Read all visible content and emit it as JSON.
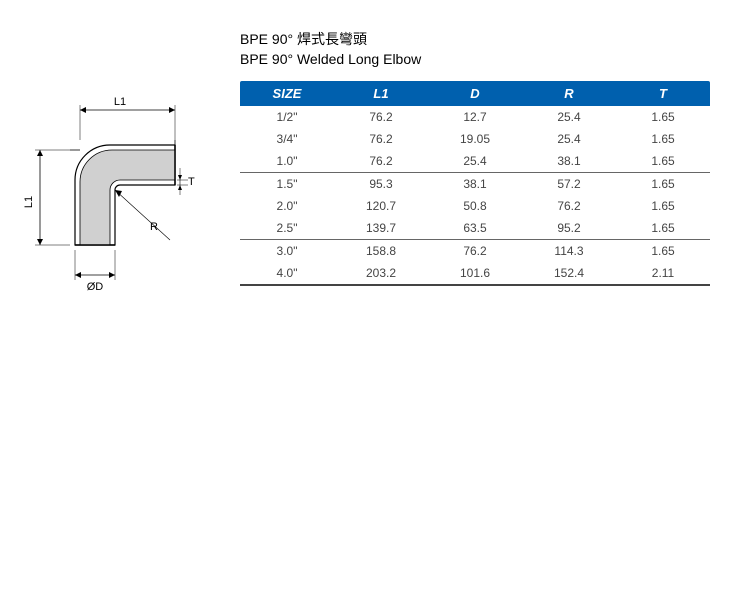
{
  "title": {
    "line1": "BPE 90° 焊式長彎頭",
    "line2": "BPE 90° Welded Long Elbow"
  },
  "diagram": {
    "labels": {
      "L1": "L1",
      "D": "ØD",
      "R": "R",
      "T": "T"
    },
    "stroke": "#000000",
    "fill_outer": "#ffffff",
    "fill_inner": "#c8c8c8",
    "label_fontsize": 11
  },
  "table": {
    "header_bg": "#0060ae",
    "header_color": "#ffffff",
    "border_color": "#666666",
    "text_color": "#444444",
    "columns": [
      "SIZE",
      "L1",
      "D",
      "R",
      "T"
    ],
    "col_widths": [
      "20%",
      "20%",
      "20%",
      "20%",
      "20%"
    ],
    "groups": [
      {
        "rows": [
          [
            "1/2\"",
            "76.2",
            "12.7",
            "25.4",
            "1.65"
          ],
          [
            "3/4\"",
            "76.2",
            "19.05",
            "25.4",
            "1.65"
          ],
          [
            "1.0\"",
            "76.2",
            "25.4",
            "38.1",
            "1.65"
          ]
        ]
      },
      {
        "rows": [
          [
            "1.5\"",
            "95.3",
            "38.1",
            "57.2",
            "1.65"
          ],
          [
            "2.0\"",
            "120.7",
            "50.8",
            "76.2",
            "1.65"
          ],
          [
            "2.5\"",
            "139.7",
            "63.5",
            "95.2",
            "1.65"
          ]
        ]
      },
      {
        "rows": [
          [
            "3.0\"",
            "158.8",
            "76.2",
            "114.3",
            "1.65"
          ],
          [
            "4.0\"",
            "203.2",
            "101.6",
            "152.4",
            "2.11"
          ]
        ]
      }
    ]
  }
}
